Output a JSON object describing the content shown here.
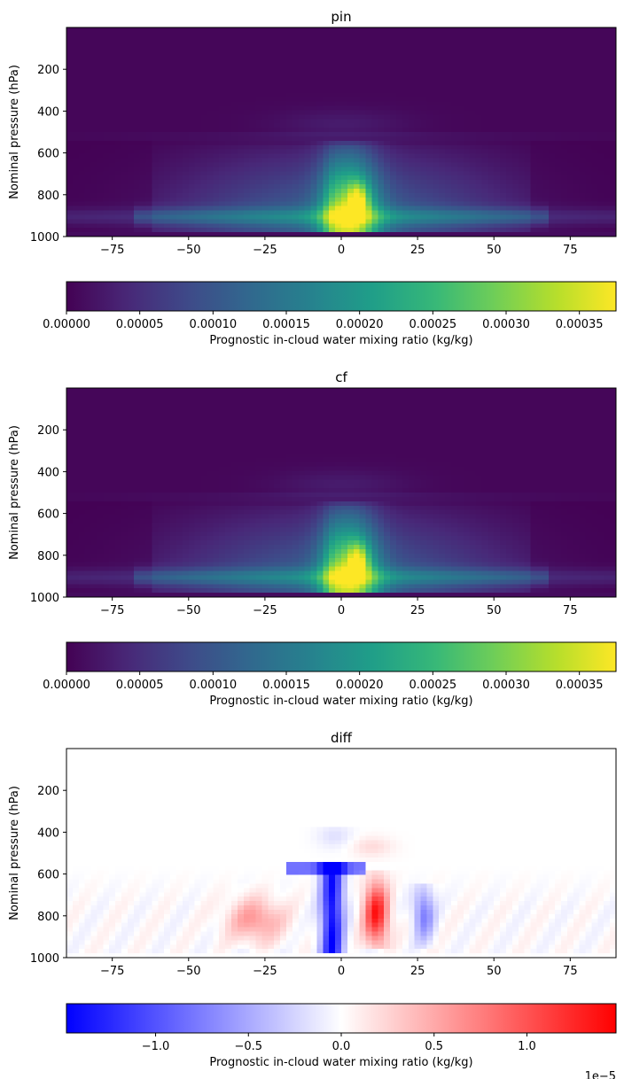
{
  "chart_data": [
    {
      "type": "heatmap",
      "title": "pin",
      "ylabel": "Nominal pressure (hPa)",
      "xlim": [
        -90,
        90
      ],
      "ylim": [
        1000,
        0
      ],
      "xticks": [
        -75,
        -50,
        -25,
        0,
        25,
        50,
        75
      ],
      "xtick_labels": [
        "−75",
        "−50",
        "−25",
        "0",
        "25",
        "50",
        "75"
      ],
      "yticks": [
        200,
        400,
        600,
        800,
        1000
      ],
      "ytick_labels": [
        "200",
        "400",
        "600",
        "800",
        "1000"
      ],
      "colormap": "viridis",
      "vmin": 0,
      "vmax": 0.000375,
      "peak": {
        "x": 5,
        "y": 800,
        "value": 0.000375
      },
      "colorbar": {
        "orientation": "horizontal",
        "label": "Prognostic in-cloud water mixing ratio (kg/kg)",
        "ticks": [
          0,
          5e-05,
          0.0001,
          0.00015,
          0.0002,
          0.00025,
          0.0003,
          0.00035
        ],
        "tick_labels": [
          "0.00000",
          "0.00005",
          "0.00010",
          "0.00015",
          "0.00020",
          "0.00025",
          "0.00030",
          "0.00035"
        ]
      }
    },
    {
      "type": "heatmap",
      "title": "cf",
      "ylabel": "Nominal pressure (hPa)",
      "xlim": [
        -90,
        90
      ],
      "ylim": [
        1000,
        0
      ],
      "xticks": [
        -75,
        -50,
        -25,
        0,
        25,
        50,
        75
      ],
      "xtick_labels": [
        "−75",
        "−50",
        "−25",
        "0",
        "25",
        "50",
        "75"
      ],
      "yticks": [
        200,
        400,
        600,
        800,
        1000
      ],
      "ytick_labels": [
        "200",
        "400",
        "600",
        "800",
        "1000"
      ],
      "colormap": "viridis",
      "vmin": 0,
      "vmax": 0.000375,
      "peak": {
        "x": 5,
        "y": 800,
        "value": 0.00037
      },
      "colorbar": {
        "orientation": "horizontal",
        "label": "Prognostic in-cloud water mixing ratio (kg/kg)",
        "ticks": [
          0,
          5e-05,
          0.0001,
          0.00015,
          0.0002,
          0.00025,
          0.0003,
          0.00035
        ],
        "tick_labels": [
          "0.00000",
          "0.00005",
          "0.00010",
          "0.00015",
          "0.00020",
          "0.00025",
          "0.00030",
          "0.00035"
        ]
      }
    },
    {
      "type": "heatmap",
      "title": "diff",
      "ylabel": "Nominal pressure (hPa)",
      "xlim": [
        -90,
        90
      ],
      "ylim": [
        1000,
        0
      ],
      "xticks": [
        -75,
        -50,
        -25,
        0,
        25,
        50,
        75
      ],
      "xtick_labels": [
        "−75",
        "−50",
        "−25",
        "0",
        "25",
        "50",
        "75"
      ],
      "yticks": [
        200,
        400,
        600,
        800,
        1000
      ],
      "ytick_labels": [
        "200",
        "400",
        "600",
        "800",
        "1000"
      ],
      "colormap": "bwr",
      "vmin": -1.48e-05,
      "vmax": 1.48e-05,
      "features": [
        {
          "x": -3,
          "y": 800,
          "value": -1.48e-05
        },
        {
          "x": 12,
          "y": 800,
          "value": 1.48e-05
        },
        {
          "x": -28,
          "y": 810,
          "value": 5e-06
        },
        {
          "x": 27,
          "y": 800,
          "value": -7e-06
        }
      ],
      "colorbar": {
        "orientation": "horizontal",
        "label": "Prognostic in-cloud water mixing ratio (kg/kg)",
        "ticks": [
          -1.0,
          -0.5,
          0.0,
          0.5,
          1.0
        ],
        "tick_labels": [
          "−1.0",
          "−0.5",
          "0.0",
          "0.5",
          "1.0"
        ],
        "offset_text": "1e−5"
      }
    }
  ]
}
